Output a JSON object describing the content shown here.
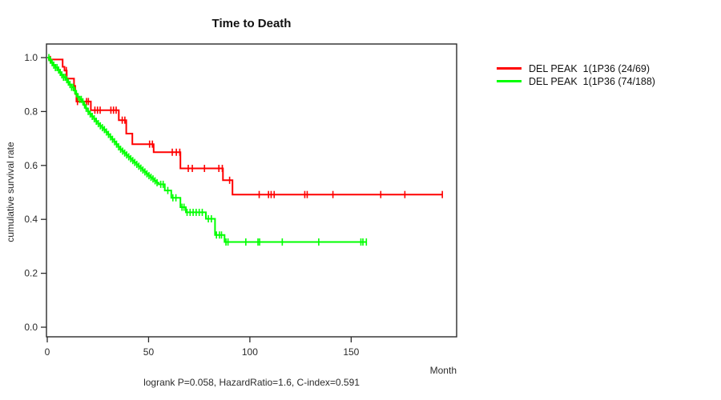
{
  "figure": {
    "title": "Time to Death",
    "y_axis_label": "cumulative survival rate",
    "x_axis_label": "Month",
    "caption": "logrank P=0.058, HazardRatio=1.6, C-index=0.591"
  },
  "colors": {
    "series_red": "#ff0000",
    "series_green": "#00ff00",
    "axis": "#2b2b2b",
    "background": "#ffffff"
  },
  "chart_data": {
    "type": "line",
    "subtype": "kaplan-meier-step",
    "title": "Time to Death",
    "xlabel": "Month",
    "ylabel": "cumulative survival rate",
    "xlim": [
      0,
      202
    ],
    "ylim": [
      0.0,
      1.0
    ],
    "x_ticks": [
      0,
      50,
      100,
      150
    ],
    "y_ticks": [
      0.0,
      0.2,
      0.4,
      0.6,
      0.8,
      1.0
    ],
    "y_tick_labels": [
      "0.0",
      "0.2",
      "0.4",
      "0.6",
      "0.8",
      "1.0"
    ],
    "grid": false,
    "legend_position": "right-outside",
    "annotation": "logrank P=0.058, HazardRatio=1.6, C-index=0.591",
    "series": [
      {
        "name": "DEL PEAK  1(1P36 (24/69)",
        "color": "#ff0000",
        "start_value": 1.0,
        "end_month": 195,
        "steps": [
          [
            0.8,
            0.993
          ],
          [
            7.6,
            0.966
          ],
          [
            8.5,
            0.952
          ],
          [
            9.6,
            0.922
          ],
          [
            13.2,
            0.895
          ],
          [
            13.8,
            0.865
          ],
          [
            14.4,
            0.837
          ],
          [
            21.5,
            0.805
          ],
          [
            35.3,
            0.768
          ],
          [
            39.0,
            0.718
          ],
          [
            42.0,
            0.679
          ],
          [
            52.5,
            0.649
          ],
          [
            65.7,
            0.589
          ],
          [
            86.7,
            0.545
          ],
          [
            91.4,
            0.492
          ]
        ],
        "censor_months": [
          1.5,
          9.4,
          14.9,
          19.4,
          20.3,
          23.5,
          24.8,
          26.1,
          31.4,
          32.7,
          34.0,
          37.0,
          38.3,
          50.5,
          51.9,
          61.7,
          63.7,
          65.4,
          69.6,
          71.6,
          77.6,
          84.7,
          86.4,
          90.0,
          104.6,
          109.2,
          110.5,
          112.0,
          127.1,
          128.3,
          141.0,
          164.6,
          176.5,
          195.0
        ]
      },
      {
        "name": "DEL PEAK  1(1P36 (74/188)",
        "color": "#00ff00",
        "start_value": 1.0,
        "end_month": 157.5,
        "steps": [
          [
            1,
            0.99
          ],
          [
            2,
            0.981
          ],
          [
            3,
            0.972
          ],
          [
            4,
            0.963
          ],
          [
            5,
            0.954
          ],
          [
            6,
            0.945
          ],
          [
            7,
            0.936
          ],
          [
            8,
            0.927
          ],
          [
            9,
            0.918
          ],
          [
            10,
            0.909
          ],
          [
            11,
            0.9
          ],
          [
            12,
            0.89
          ],
          [
            13,
            0.878
          ],
          [
            14,
            0.866
          ],
          [
            15,
            0.854
          ],
          [
            16,
            0.845
          ],
          [
            17,
            0.836
          ],
          [
            18,
            0.824
          ],
          [
            19,
            0.812
          ],
          [
            20,
            0.8
          ],
          [
            21,
            0.791
          ],
          [
            22,
            0.782
          ],
          [
            23,
            0.773
          ],
          [
            24,
            0.764
          ],
          [
            25,
            0.755
          ],
          [
            26,
            0.747
          ],
          [
            27,
            0.74
          ],
          [
            28,
            0.733
          ],
          [
            29,
            0.724
          ],
          [
            30,
            0.715
          ],
          [
            31,
            0.706
          ],
          [
            32,
            0.697
          ],
          [
            33,
            0.688
          ],
          [
            34,
            0.679
          ],
          [
            35,
            0.669
          ],
          [
            36,
            0.66
          ],
          [
            37,
            0.653
          ],
          [
            38,
            0.646
          ],
          [
            39,
            0.639
          ],
          [
            40,
            0.632
          ],
          [
            41,
            0.625
          ],
          [
            42,
            0.618
          ],
          [
            43,
            0.611
          ],
          [
            44,
            0.604
          ],
          [
            45,
            0.597
          ],
          [
            46,
            0.59
          ],
          [
            47,
            0.583
          ],
          [
            48,
            0.576
          ],
          [
            49,
            0.569
          ],
          [
            50,
            0.562
          ],
          [
            51,
            0.556
          ],
          [
            52,
            0.55
          ],
          [
            53,
            0.543
          ],
          [
            54,
            0.536
          ],
          [
            55,
            0.53
          ],
          [
            58,
            0.507
          ],
          [
            61.2,
            0.48
          ],
          [
            65.7,
            0.445
          ],
          [
            68.4,
            0.426
          ],
          [
            78.3,
            0.402
          ],
          [
            82.8,
            0.342
          ],
          [
            87.5,
            0.316
          ]
        ],
        "censor_months": [
          0.8,
          1.6,
          2.4,
          3.2,
          4.0,
          4.8,
          5.6,
          6.4,
          7.2,
          8.0,
          8.8,
          9.6,
          10.4,
          11.2,
          12.0,
          12.8,
          13.6,
          14.4,
          15.2,
          16.0,
          16.8,
          17.6,
          18.4,
          19.2,
          20.2,
          21.2,
          22.2,
          23.2,
          24.2,
          25.2,
          26.2,
          27.2,
          28.2,
          29.2,
          30.2,
          31.2,
          32.2,
          33.2,
          34.2,
          35.2,
          36.2,
          37.2,
          38.2,
          39.2,
          40.2,
          41.2,
          42.2,
          43.2,
          44.2,
          45.2,
          46.2,
          47.2,
          48.2,
          49.2,
          50.2,
          51.2,
          52.2,
          53.2,
          54.2,
          56.0,
          57.2,
          59.5,
          62.0,
          63.5,
          66.5,
          67.5,
          69.0,
          70.5,
          72.0,
          73.5,
          75.0,
          76.5,
          79.5,
          81.0,
          83.5,
          85.0,
          86.0,
          88.2,
          89.2,
          98.0,
          104.0,
          104.8,
          116.0,
          134.0,
          154.8,
          155.8,
          157.5
        ]
      }
    ]
  }
}
